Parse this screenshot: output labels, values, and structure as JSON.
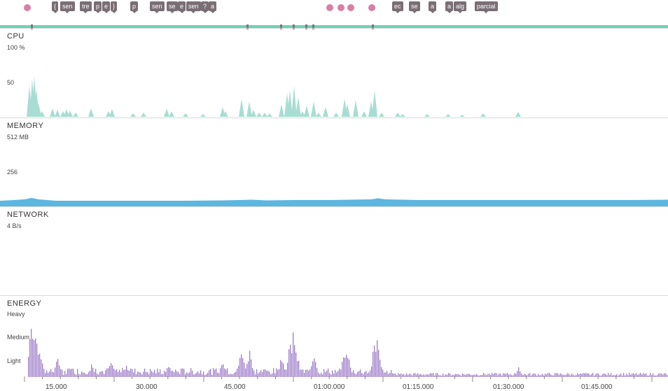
{
  "panels": {
    "cpu": {
      "title": "CPU",
      "axis_top": "100 %",
      "axis_mid": "50"
    },
    "memory": {
      "title": "MEMORY",
      "axis_top": "512 MB",
      "axis_mid": "256"
    },
    "network": {
      "title": "NETWORK",
      "axis_top": "4 B/s"
    },
    "energy": {
      "title": "ENERGY",
      "axis_heavy": "Heavy",
      "axis_medium": "Medium",
      "axis_light": "Light"
    }
  },
  "time_axis": {
    "ticks": [
      "15.000",
      "30.000",
      "45.000",
      "01:00.000",
      "01:15.000",
      "01:30.000",
      "01:45.000"
    ]
  },
  "event_labels": {
    "group_a": [
      "{",
      "sen",
      "tre",
      "p",
      "e",
      "}",
      "p",
      "sen",
      "se",
      "e",
      "sen",
      "?",
      "a"
    ],
    "group_b": [
      "ec",
      "se",
      "a",
      "a",
      "alg",
      "parcial"
    ]
  },
  "colors": {
    "cpu_fill": "#a8ddd3",
    "memory_fill": "#5bb6e0",
    "energy_bar": "#9d7cc8",
    "session_bar": "#6fd0b8",
    "event_dot": "#d97ea6",
    "event_pill": "#7a6e75"
  },
  "icons": {
    "event_marker": "event-dot-icon"
  }
}
